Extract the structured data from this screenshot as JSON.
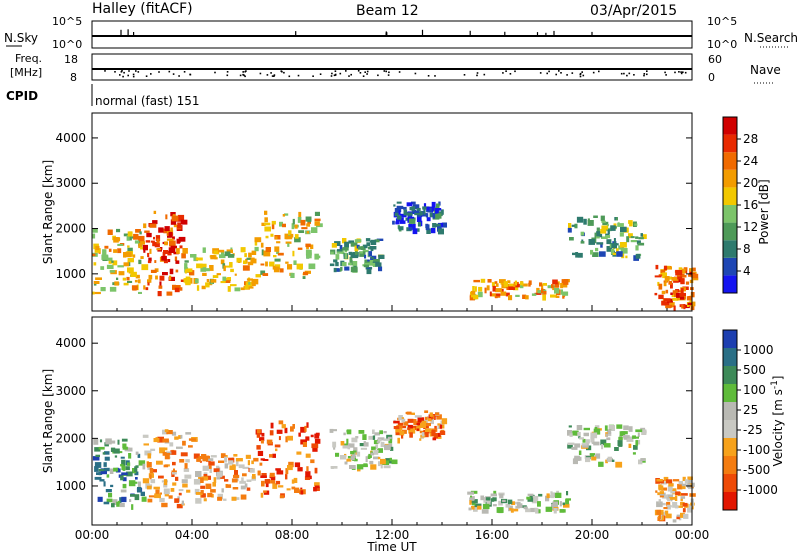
{
  "header": {
    "station": "Halley (fitACF)",
    "beam": "Beam 12",
    "date": "03/Apr/2015"
  },
  "top_panels": {
    "nsky": {
      "label": "N.Sky",
      "tick_high": "10^5",
      "tick_low": "10^0",
      "right_label": "N.Search",
      "right_tick_high": "10^5",
      "right_tick_low": "10^0"
    },
    "freq": {
      "label_line1": "Freq.",
      "label_line2": "[MHz]",
      "tick_high": "18",
      "tick_low": "8",
      "right_label": "Nave",
      "right_tick_high": "60",
      "right_tick_low": "0"
    },
    "cpid": {
      "label": "CPID",
      "mode_text": "normal (fast) 151"
    }
  },
  "chart_data": [
    {
      "type": "heatmap",
      "name": "power",
      "xlabel": "Time UT",
      "ylabel": "Slant Range [km]",
      "xlim_hours": [
        0,
        24
      ],
      "ylim_km": [
        180,
        4550
      ],
      "ytick_labels": [
        "1000",
        "2000",
        "3000",
        "4000"
      ],
      "colorbar": {
        "label": "Power [dB]",
        "tick_labels": [
          "4",
          "8",
          "12",
          "16",
          "20",
          "24",
          "28"
        ],
        "colors": [
          "#1414f0",
          "#1e46b4",
          "#2e7a6e",
          "#4e9a58",
          "#7cc46a",
          "#f2c800",
          "#f39c00",
          "#f06a00",
          "#e82a00",
          "#d00000"
        ]
      },
      "echo_regions": [
        {
          "t": [
            0.0,
            2.0
          ],
          "r": [
            600,
            2000
          ],
          "level": 5
        },
        {
          "t": [
            2.0,
            3.6
          ],
          "r": [
            600,
            2400
          ],
          "level": 8
        },
        {
          "t": [
            3.6,
            6.5
          ],
          "r": [
            700,
            1600
          ],
          "level": 5
        },
        {
          "t": [
            6.5,
            9.0
          ],
          "r": [
            900,
            2400
          ],
          "level": 5
        },
        {
          "t": [
            9.5,
            11.5
          ],
          "r": [
            1100,
            1800
          ],
          "level": 3
        },
        {
          "t": [
            12.0,
            14.0
          ],
          "r": [
            2000,
            2600
          ],
          "level": 1
        },
        {
          "t": [
            15.0,
            19.0
          ],
          "r": [
            500,
            900
          ],
          "level": 6
        },
        {
          "t": [
            19.0,
            22.0
          ],
          "r": [
            1400,
            2300
          ],
          "level": 3
        },
        {
          "t": [
            22.5,
            24.0
          ],
          "r": [
            300,
            1200
          ],
          "level": 7
        }
      ]
    },
    {
      "type": "heatmap",
      "name": "velocity",
      "xlabel": "Time UT",
      "ylabel": "Slant Range [km]",
      "xlim_hours": [
        0,
        24
      ],
      "ylim_km": [
        180,
        4550
      ],
      "xtick_labels": [
        "00:00",
        "04:00",
        "08:00",
        "12:00",
        "16:00",
        "20:00",
        "00:00"
      ],
      "ytick_labels": [
        "1000",
        "2000",
        "3000",
        "4000"
      ],
      "colorbar": {
        "label": "Velocity [m s",
        "label_sup": "-1",
        "label_end": "]",
        "tick_labels": [
          "1000",
          "500",
          "100",
          "25",
          "-25",
          "-100",
          "-500",
          "-1000"
        ],
        "colors": [
          "#1d3fb0",
          "#2a6f86",
          "#3d8a58",
          "#5fbb3a",
          "#b9b9b3",
          "#c9c9c3",
          "#f7a21b",
          "#f47c10",
          "#ee4a06",
          "#e21600"
        ]
      },
      "echo_regions": [
        {
          "t": [
            0.0,
            2.0
          ],
          "r": [
            600,
            2000
          ],
          "level": 2
        },
        {
          "t": [
            2.0,
            4.0
          ],
          "r": [
            600,
            2200
          ],
          "level": 6
        },
        {
          "t": [
            4.0,
            6.5
          ],
          "r": [
            700,
            1700
          ],
          "level": 6
        },
        {
          "t": [
            6.5,
            9.0
          ],
          "r": [
            800,
            2400
          ],
          "level": 8
        },
        {
          "t": [
            9.5,
            12.0
          ],
          "r": [
            1400,
            2200
          ],
          "level": 4
        },
        {
          "t": [
            12.0,
            14.0
          ],
          "r": [
            2000,
            2600
          ],
          "level": 7
        },
        {
          "t": [
            15.0,
            19.0
          ],
          "r": [
            500,
            900
          ],
          "level": 4
        },
        {
          "t": [
            19.0,
            22.0
          ],
          "r": [
            1500,
            2300
          ],
          "level": 4
        },
        {
          "t": [
            22.5,
            24.0
          ],
          "r": [
            300,
            1200
          ],
          "level": 6
        }
      ]
    }
  ]
}
